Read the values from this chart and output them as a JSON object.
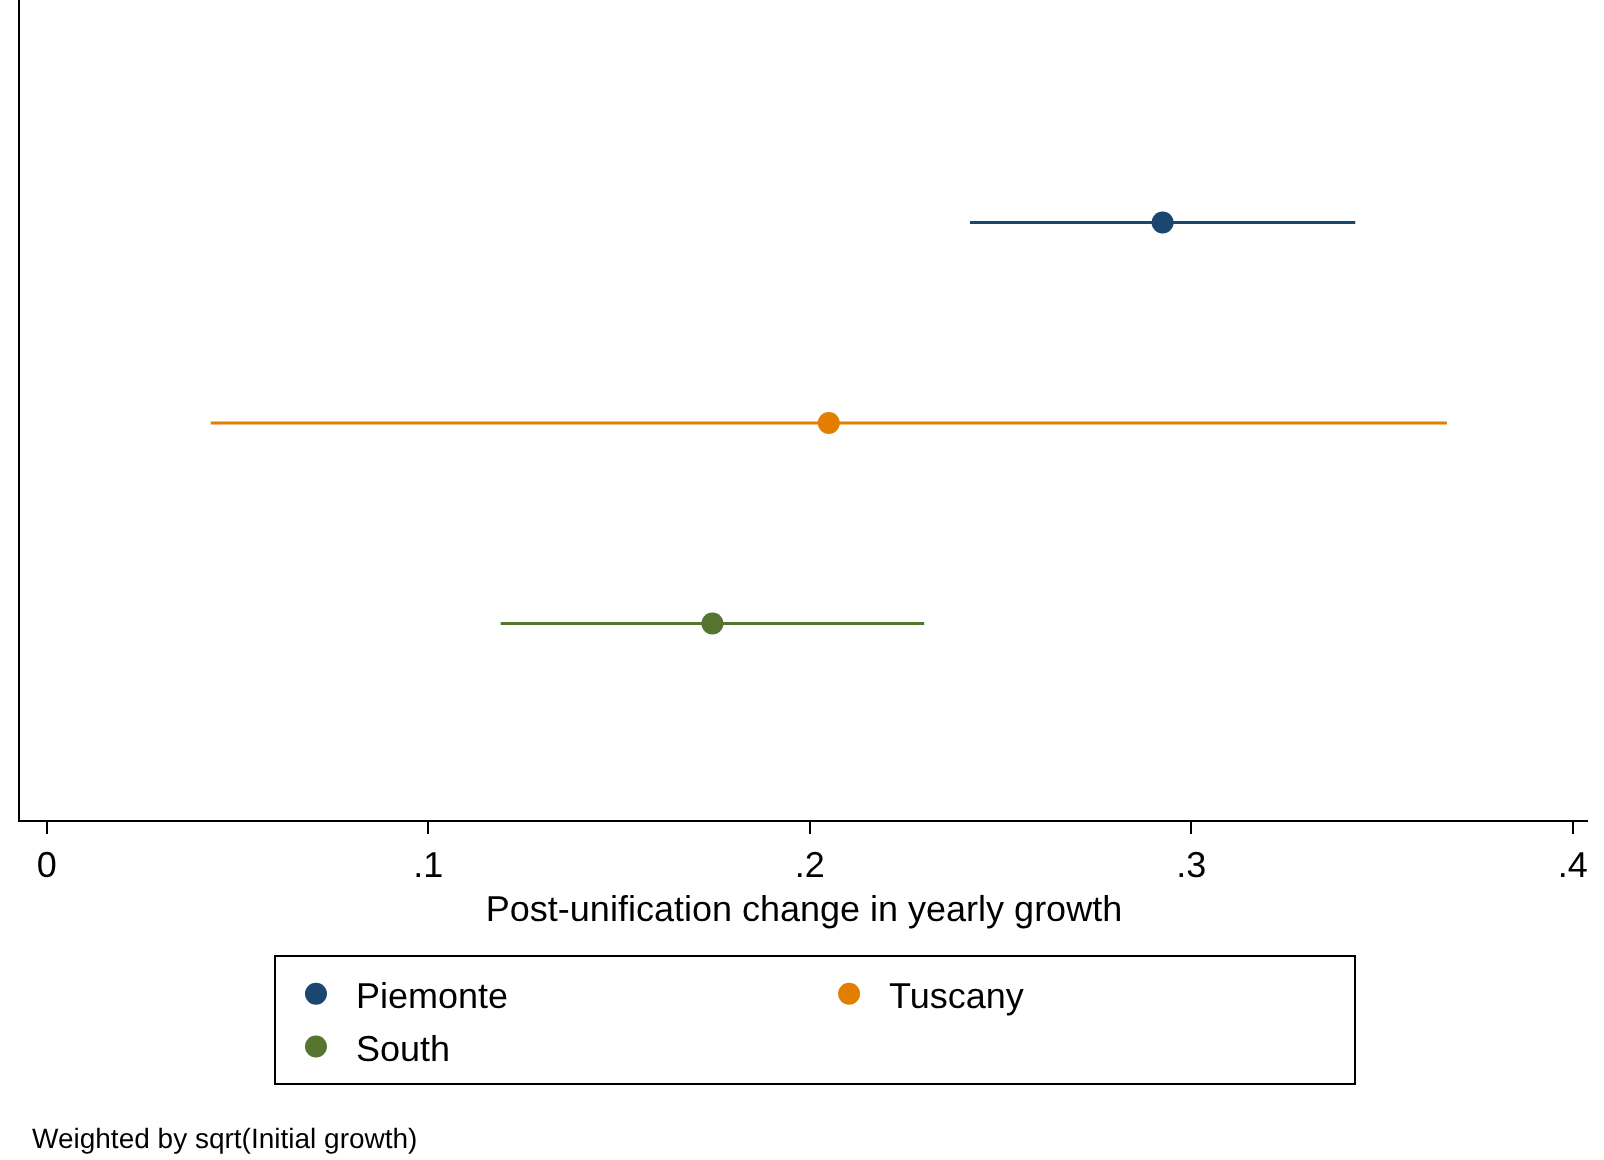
{
  "chart_data": {
    "type": "scatter",
    "orientation": "horizontal",
    "categories": [
      null,
      null,
      null
    ],
    "series": [
      {
        "name": "Piemonte",
        "color": "#1a476f",
        "values": [
          0.2925,
          null,
          null
        ],
        "errors": [
          [
            0.242,
            0.343
          ],
          null,
          null
        ]
      },
      {
        "name": "Tuscany",
        "color": "#e37e00",
        "values": [
          null,
          0.205,
          null
        ],
        "errors": [
          null,
          [
            0.043,
            0.367
          ],
          null
        ]
      },
      {
        "name": "South",
        "color": "#55752f",
        "values": [
          null,
          null,
          0.1745
        ],
        "errors": [
          null,
          null,
          [
            0.119,
            0.23
          ]
        ]
      }
    ],
    "xlabel": "Post-unification change in yearly growth",
    "xlim": [
      -0.007,
      0.404
    ],
    "xticks": [
      {
        "value": 0,
        "label": "0"
      },
      {
        "value": 0.1,
        "label": ".1"
      },
      {
        "value": 0.2,
        "label": ".2"
      },
      {
        "value": 0.3,
        "label": ".3"
      },
      {
        "value": 0.4,
        "label": ".4"
      }
    ],
    "marker": "circle",
    "legend": "bottom",
    "tick_labels": "x",
    "annotations": [
      "Weighted by sqrt(Initial growth)"
    ]
  }
}
